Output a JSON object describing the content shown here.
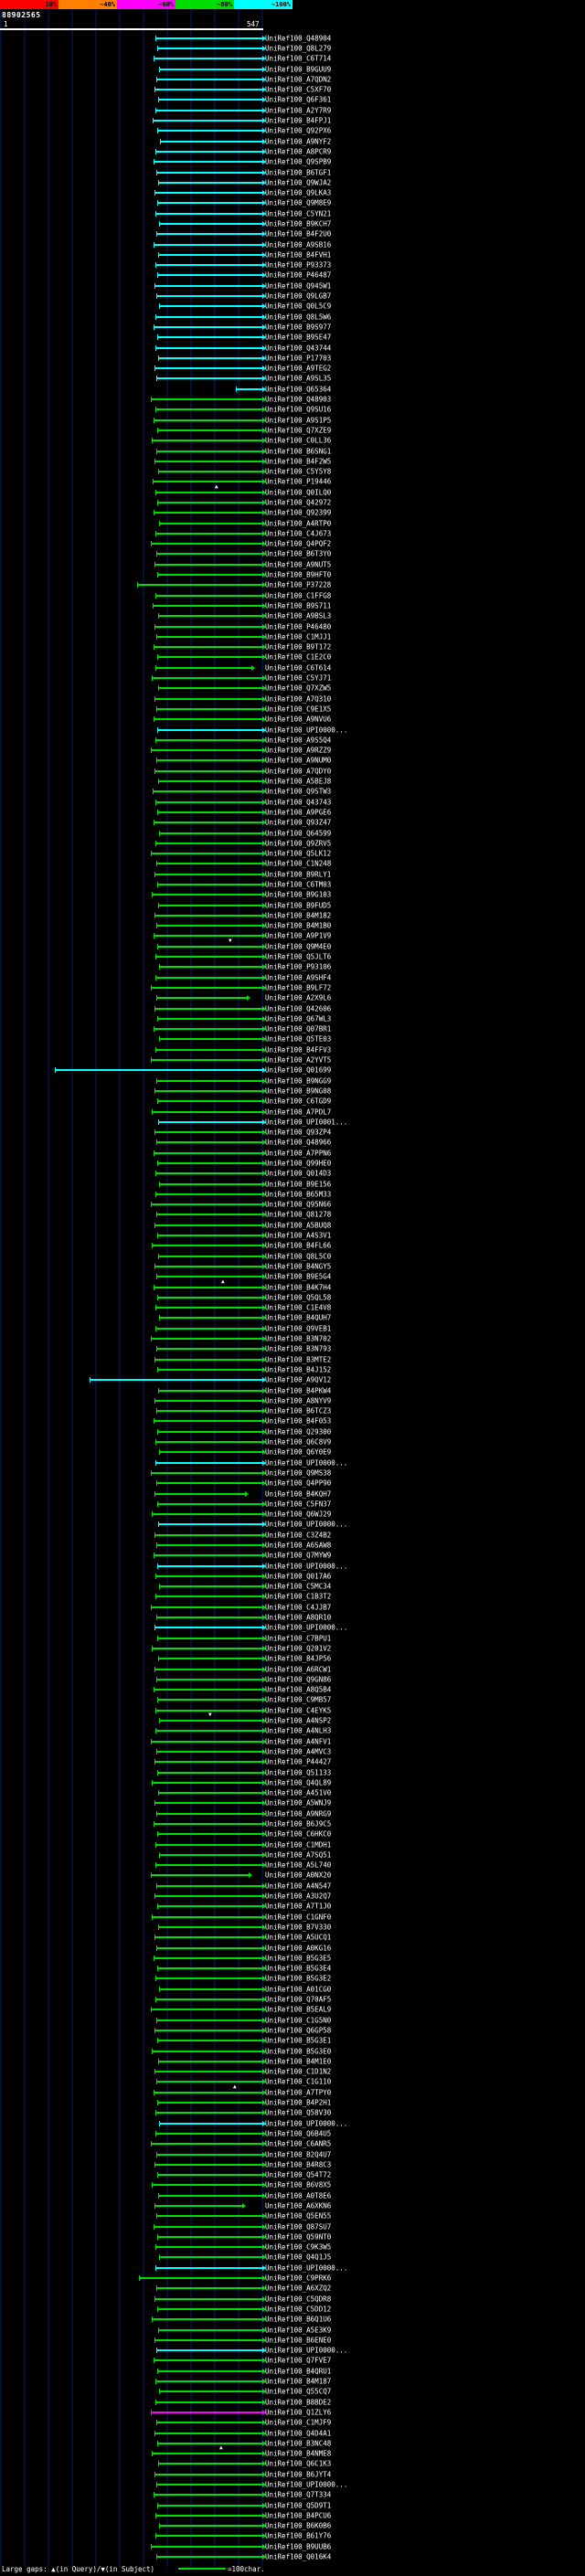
{
  "footer": {
    "gap_legend": "Large gaps: ▲(in Query)/▼(in Subject)",
    "scale_label": "=100char.",
    "scale_line_color": "#00dd00"
  },
  "glyphs": {
    "gap_up": "▲",
    "gap_down": "▼"
  },
  "chart_data": {
    "type": "bar",
    "subtype": "blast-hit-distribution-map",
    "query": {
      "id": "88902565",
      "start": 1,
      "end": 547
    },
    "identity_color_key": {
      "bins": [
        {
          "label": "20%",
          "color": "#ff0000"
        },
        {
          "label": "~40%",
          "color": "#ff8000"
        },
        {
          "label": "~60%",
          "color": "#ff00ff"
        },
        {
          "label": "~80%",
          "color": "#00dd00"
        },
        {
          "label": "~100%",
          "color": "#00ffff"
        }
      ]
    },
    "hit_label_prefix": "UniRef100_",
    "colors": {
      "C": "#00ffff",
      "G": "#00dd00",
      "M": "#ff00ff"
    },
    "hits_format": [
      "id",
      "color_code",
      "bar_x1_px",
      "bar_x2_px",
      "gap_marker_x_px",
      "gap_marker_dir"
    ],
    "hits": [
      [
        "Q48904",
        "C",
        170,
        287
      ],
      [
        "Q8L279",
        "C",
        172,
        287
      ],
      [
        "C6T714",
        "C",
        168,
        287
      ],
      [
        "B9GUU9",
        "C",
        174,
        287
      ],
      [
        "A7QDN2",
        "C",
        171,
        287
      ],
      [
        "C5XF70",
        "C",
        169,
        287
      ],
      [
        "Q6F361",
        "C",
        173,
        287
      ],
      [
        "A2Y7R9",
        "C",
        170,
        287
      ],
      [
        "B4FPJ1",
        "C",
        167,
        287
      ],
      [
        "Q92PX6",
        "C",
        172,
        287
      ],
      [
        "A9NYF2",
        "C",
        175,
        287
      ],
      [
        "A8PCR9",
        "C",
        170,
        287
      ],
      [
        "Q9SPB9",
        "C",
        168,
        287
      ],
      [
        "B6TGF1",
        "C",
        171,
        287
      ],
      [
        "Q9WJA2",
        "C",
        173,
        287
      ],
      [
        "Q9LKA3",
        "C",
        169,
        287
      ],
      [
        "Q9M8E9",
        "C",
        172,
        287
      ],
      [
        "C5YN21",
        "C",
        170,
        287
      ],
      [
        "B9KCH7",
        "C",
        174,
        287
      ],
      [
        "B4F2U0",
        "C",
        171,
        287
      ],
      [
        "A9SB16",
        "C",
        168,
        287
      ],
      [
        "B4FVH1",
        "C",
        173,
        287
      ],
      [
        "P93373",
        "C",
        170,
        287
      ],
      [
        "P46487",
        "C",
        172,
        287
      ],
      [
        "Q945W1",
        "C",
        169,
        287
      ],
      [
        "Q9LGB7",
        "C",
        171,
        287
      ],
      [
        "Q0L5C9",
        "C",
        174,
        287
      ],
      [
        "Q8L5W6",
        "C",
        170,
        287
      ],
      [
        "B9S977",
        "C",
        168,
        287
      ],
      [
        "B9SE47",
        "C",
        172,
        287
      ],
      [
        "Q43744",
        "C",
        170,
        287
      ],
      [
        "P17703",
        "C",
        173,
        287
      ],
      [
        "A9TEG2",
        "C",
        169,
        287
      ],
      [
        "A9SL35",
        "C",
        171,
        287
      ],
      [
        "Q65364",
        "C",
        258,
        287
      ],
      [
        "Q48903",
        "G",
        165,
        287
      ],
      [
        "Q9SU16",
        "G",
        170,
        287
      ],
      [
        "A9S1P5",
        "G",
        168,
        287
      ],
      [
        "Q7XZE9",
        "G",
        172,
        287
      ],
      [
        "C0LL36",
        "G",
        166,
        287
      ],
      [
        "B6SNG1",
        "G",
        171,
        287
      ],
      [
        "B4F2W5",
        "G",
        169,
        287
      ],
      [
        "C5Y5Y8",
        "G",
        173,
        287
      ],
      [
        "P19446",
        "G",
        167,
        287
      ],
      [
        "Q0ILQ0",
        "G",
        170,
        287,
        235,
        "u"
      ],
      [
        "Q42972",
        "G",
        172,
        287
      ],
      [
        "Q92399",
        "G",
        168,
        287
      ],
      [
        "A4RTP0",
        "G",
        174,
        287
      ],
      [
        "C4J673",
        "G",
        170,
        287
      ],
      [
        "Q4PQF2",
        "G",
        165,
        287
      ],
      [
        "B6T3Y0",
        "G",
        171,
        287
      ],
      [
        "A9NUT5",
        "G",
        169,
        287
      ],
      [
        "B9HFT0",
        "G",
        172,
        287
      ],
      [
        "P37228",
        "G",
        150,
        287
      ],
      [
        "C1FFG8",
        "G",
        170,
        287
      ],
      [
        "B9S711",
        "G",
        167,
        287
      ],
      [
        "A9BSL3",
        "G",
        173,
        287
      ],
      [
        "P46480",
        "G",
        169,
        287
      ],
      [
        "C1MJJ1",
        "G",
        171,
        287
      ],
      [
        "B9T172",
        "G",
        168,
        287
      ],
      [
        "C1E2C0",
        "G",
        172,
        287
      ],
      [
        "C6T614",
        "G",
        170,
        275
      ],
      [
        "C5YJ71",
        "G",
        166,
        287
      ],
      [
        "Q7XZW5",
        "G",
        173,
        287
      ],
      [
        "A7Q310",
        "G",
        169,
        287
      ],
      [
        "C9E1X5",
        "G",
        171,
        287
      ],
      [
        "A9NVU6",
        "G",
        168,
        287
      ],
      [
        "UPI0000...",
        "C",
        172,
        287
      ],
      [
        "A9S5Q4",
        "G",
        170,
        287
      ],
      [
        "A9RZZ9",
        "G",
        165,
        287
      ],
      [
        "A9NUM0",
        "G",
        171,
        287
      ],
      [
        "A7QDY0",
        "G",
        169,
        287
      ],
      [
        "A5BEJ8",
        "G",
        173,
        287
      ],
      [
        "Q9STW3",
        "G",
        167,
        287
      ],
      [
        "Q43743",
        "G",
        170,
        287
      ],
      [
        "A9PGE6",
        "G",
        172,
        287
      ],
      [
        "Q93Z47",
        "G",
        168,
        287
      ],
      [
        "Q64599",
        "G",
        174,
        287
      ],
      [
        "Q9ZRV5",
        "G",
        170,
        287
      ],
      [
        "Q5LK12",
        "G",
        165,
        287
      ],
      [
        "C1N248",
        "G",
        171,
        287
      ],
      [
        "B9RLY1",
        "G",
        169,
        287
      ],
      [
        "C6TM03",
        "G",
        172,
        287
      ],
      [
        "B9G103",
        "G",
        166,
        287
      ],
      [
        "B9FUD5",
        "G",
        173,
        287
      ],
      [
        "B4M182",
        "G",
        169,
        287
      ],
      [
        "B4M1B0",
        "G",
        171,
        287
      ],
      [
        "A9P1V9",
        "G",
        168,
        287
      ],
      [
        "Q9M4E0",
        "G",
        172,
        287,
        250,
        "d"
      ],
      [
        "Q5JLT6",
        "G",
        170,
        287
      ],
      [
        "P93106",
        "G",
        174,
        287
      ],
      [
        "A9SHF4",
        "G",
        170,
        287
      ],
      [
        "B9LF72",
        "G",
        165,
        287
      ],
      [
        "A2X9L6",
        "G",
        171,
        270
      ],
      [
        "Q42606",
        "G",
        169,
        287
      ],
      [
        "Q67WL3",
        "G",
        172,
        287
      ],
      [
        "Q07BR1",
        "G",
        168,
        287
      ],
      [
        "Q5TE03",
        "G",
        174,
        287
      ],
      [
        "B4FFV3",
        "G",
        170,
        287
      ],
      [
        "A2YVT5",
        "G",
        165,
        287
      ],
      [
        "Q01699",
        "C",
        60,
        287
      ],
      [
        "B9NGG9",
        "G",
        171,
        287
      ],
      [
        "B9NG08",
        "G",
        169,
        287
      ],
      [
        "C6TGD9",
        "G",
        172,
        287
      ],
      [
        "A7PDL7",
        "G",
        166,
        287
      ],
      [
        "UPI0001...",
        "C",
        173,
        287
      ],
      [
        "Q93ZP4",
        "G",
        169,
        287
      ],
      [
        "Q48966",
        "G",
        171,
        287
      ],
      [
        "A7PPN6",
        "G",
        168,
        287
      ],
      [
        "Q99HE0",
        "G",
        172,
        287
      ],
      [
        "Q014D3",
        "G",
        170,
        287
      ],
      [
        "B9E156",
        "G",
        174,
        287
      ],
      [
        "B65M33",
        "G",
        170,
        287
      ],
      [
        "Q95N66",
        "G",
        165,
        287
      ],
      [
        "Q81278",
        "G",
        171,
        287
      ],
      [
        "A5BUQ8",
        "G",
        169,
        287
      ],
      [
        "A4S3V1",
        "G",
        172,
        287
      ],
      [
        "B4FL66",
        "G",
        166,
        287
      ],
      [
        "Q8L5C0",
        "G",
        173,
        287
      ],
      [
        "B4NGY5",
        "G",
        169,
        287
      ],
      [
        "B9E5G4",
        "G",
        171,
        287
      ],
      [
        "B4K7H4",
        "G",
        168,
        287,
        242,
        "u"
      ],
      [
        "Q5QL58",
        "G",
        172,
        287
      ],
      [
        "C1E4V8",
        "G",
        170,
        287
      ],
      [
        "B4QUH7",
        "G",
        174,
        287
      ],
      [
        "Q9VEB1",
        "G",
        170,
        287
      ],
      [
        "B3N702",
        "G",
        165,
        287
      ],
      [
        "B3N793",
        "G",
        171,
        287
      ],
      [
        "B3MTE2",
        "G",
        169,
        287
      ],
      [
        "B4J152",
        "G",
        172,
        287
      ],
      [
        "A9QV12",
        "C",
        98,
        287
      ],
      [
        "B4PKW4",
        "G",
        173,
        287
      ],
      [
        "A8NYV9",
        "G",
        169,
        287
      ],
      [
        "B6TCZ3",
        "G",
        171,
        287
      ],
      [
        "B4F053",
        "G",
        168,
        287
      ],
      [
        "Q29300",
        "G",
        172,
        287
      ],
      [
        "Q6C8V9",
        "G",
        170,
        287
      ],
      [
        "Q6Y0E9",
        "G",
        174,
        287
      ],
      [
        "UPI0000...",
        "C",
        170,
        287
      ],
      [
        "Q9MS38",
        "G",
        165,
        287
      ],
      [
        "Q4PP90",
        "G",
        171,
        287
      ],
      [
        "B4KQH7",
        "G",
        169,
        268
      ],
      [
        "C5FN37",
        "G",
        172,
        287
      ],
      [
        "Q6WJ29",
        "G",
        166,
        287
      ],
      [
        "UPI0000...",
        "C",
        173,
        287
      ],
      [
        "C3Z4B2",
        "G",
        169,
        287
      ],
      [
        "A6SAW8",
        "G",
        171,
        287
      ],
      [
        "Q7MYW9",
        "G",
        168,
        287
      ],
      [
        "UPI0000...",
        "C",
        172,
        287
      ],
      [
        "Q017A6",
        "G",
        170,
        287
      ],
      [
        "C5MC34",
        "G",
        174,
        287
      ],
      [
        "C1B3T2",
        "G",
        170,
        287
      ],
      [
        "C4JJB7",
        "G",
        165,
        287
      ],
      [
        "A8QR10",
        "G",
        171,
        287
      ],
      [
        "UPI0000...",
        "C",
        169,
        287
      ],
      [
        "C7BPU1",
        "G",
        172,
        287
      ],
      [
        "Q201V2",
        "G",
        166,
        287
      ],
      [
        "B4JP56",
        "G",
        173,
        287
      ],
      [
        "A6RCW1",
        "G",
        169,
        287
      ],
      [
        "Q9GN86",
        "G",
        171,
        287
      ],
      [
        "A8Q5B4",
        "G",
        168,
        287
      ],
      [
        "C9MB57",
        "G",
        172,
        287
      ],
      [
        "C4EYK5",
        "G",
        170,
        287
      ],
      [
        "A4NSP2",
        "G",
        174,
        287,
        228,
        "d"
      ],
      [
        "A4NLH3",
        "G",
        170,
        287
      ],
      [
        "A4NFV1",
        "G",
        165,
        287
      ],
      [
        "A4MVC3",
        "G",
        171,
        287
      ],
      [
        "P44427",
        "G",
        169,
        287
      ],
      [
        "Q51133",
        "G",
        172,
        287
      ],
      [
        "Q4QL89",
        "G",
        166,
        287
      ],
      [
        "A451V0",
        "G",
        173,
        287
      ],
      [
        "A5WNJ9",
        "G",
        169,
        287
      ],
      [
        "A9NRG9",
        "G",
        171,
        287
      ],
      [
        "B6J9C5",
        "G",
        168,
        287
      ],
      [
        "C6HKC0",
        "G",
        172,
        287
      ],
      [
        "C1MDH1",
        "G",
        170,
        287
      ],
      [
        "A7SQ51",
        "G",
        174,
        287
      ],
      [
        "A5L740",
        "G",
        170,
        287
      ],
      [
        "A0NX20",
        "G",
        165,
        272
      ],
      [
        "A4N547",
        "G",
        171,
        287
      ],
      [
        "A3U2Q7",
        "G",
        169,
        287
      ],
      [
        "A7T1J0",
        "G",
        172,
        287
      ],
      [
        "C1GNF0",
        "G",
        166,
        287
      ],
      [
        "B7V330",
        "G",
        173,
        287
      ],
      [
        "A5UCQ1",
        "G",
        169,
        287
      ],
      [
        "A0KG16",
        "G",
        171,
        287
      ],
      [
        "B5G3E5",
        "G",
        168,
        287
      ],
      [
        "B5G3E4",
        "G",
        172,
        287
      ],
      [
        "B5G3E2",
        "G",
        170,
        287
      ],
      [
        "A01CG0",
        "G",
        174,
        287
      ],
      [
        "Q70AF5",
        "G",
        170,
        287
      ],
      [
        "B5EAL9",
        "G",
        165,
        287
      ],
      [
        "C1G5N0",
        "G",
        171,
        287
      ],
      [
        "Q6GP58",
        "G",
        169,
        287
      ],
      [
        "B5G3E1",
        "G",
        172,
        287
      ],
      [
        "B5G3E0",
        "G",
        166,
        287
      ],
      [
        "B4M1E0",
        "G",
        173,
        287
      ],
      [
        "C1D1N2",
        "G",
        169,
        287
      ],
      [
        "C1G110",
        "G",
        171,
        287
      ],
      [
        "A7TPY0",
        "G",
        168,
        287,
        255,
        "u"
      ],
      [
        "B4P2H1",
        "G",
        172,
        287
      ],
      [
        "Q58V30",
        "G",
        170,
        287
      ],
      [
        "UPI0000...",
        "C",
        174,
        287
      ],
      [
        "Q6B4U5",
        "G",
        170,
        287
      ],
      [
        "C6ANR5",
        "G",
        165,
        287
      ],
      [
        "B2Q4U7",
        "G",
        171,
        287
      ],
      [
        "B4R8C3",
        "G",
        169,
        287
      ],
      [
        "Q54T72",
        "G",
        172,
        287
      ],
      [
        "B6V8X5",
        "G",
        166,
        287
      ],
      [
        "A0T8E6",
        "G",
        173,
        287
      ],
      [
        "A6XKN6",
        "G",
        169,
        265
      ],
      [
        "Q5EN55",
        "G",
        171,
        287
      ],
      [
        "Q87SU7",
        "G",
        168,
        287
      ],
      [
        "Q59NT0",
        "G",
        172,
        287
      ],
      [
        "C9K3W5",
        "G",
        170,
        287
      ],
      [
        "Q4Q1J5",
        "G",
        174,
        287
      ],
      [
        "UPI0000...",
        "C",
        170,
        287
      ],
      [
        "C9PRK6",
        "G",
        152,
        287
      ],
      [
        "A6XZQ2",
        "G",
        171,
        287
      ],
      [
        "C5QDR8",
        "G",
        169,
        287
      ],
      [
        "C5DD12",
        "G",
        172,
        287
      ],
      [
        "B6Q1U6",
        "G",
        166,
        287
      ],
      [
        "A5E3K9",
        "G",
        173,
        287
      ],
      [
        "B6ENE0",
        "G",
        169,
        287
      ],
      [
        "UPI0000...",
        "C",
        171,
        287
      ],
      [
        "Q7FVE7",
        "G",
        168,
        287
      ],
      [
        "B4QRU1",
        "G",
        172,
        287
      ],
      [
        "B4M187",
        "G",
        170,
        287
      ],
      [
        "Q55CQ7",
        "G",
        174,
        287
      ],
      [
        "B8BDE2",
        "G",
        170,
        287
      ],
      [
        "Q1ZLY6",
        "M",
        165,
        287
      ],
      [
        "C1MJF9",
        "G",
        171,
        287
      ],
      [
        "Q4D4A1",
        "G",
        169,
        287
      ],
      [
        "B3NC48",
        "G",
        172,
        287
      ],
      [
        "B4NME8",
        "G",
        166,
        287,
        240,
        "u"
      ],
      [
        "Q6C1K3",
        "G",
        173,
        287
      ],
      [
        "B6JYT4",
        "G",
        169,
        287
      ],
      [
        "UPI0000...",
        "G",
        171,
        287
      ],
      [
        "Q7T334",
        "G",
        168,
        287
      ],
      [
        "Q5D9T1",
        "G",
        172,
        287
      ],
      [
        "B4PCU6",
        "G",
        170,
        287
      ],
      [
        "B6K0B6",
        "G",
        174,
        287
      ],
      [
        "B61Y76",
        "G",
        170,
        287
      ],
      [
        "B9UUB6",
        "G",
        165,
        287
      ],
      [
        "Q016K4",
        "G",
        171,
        287
      ]
    ]
  }
}
